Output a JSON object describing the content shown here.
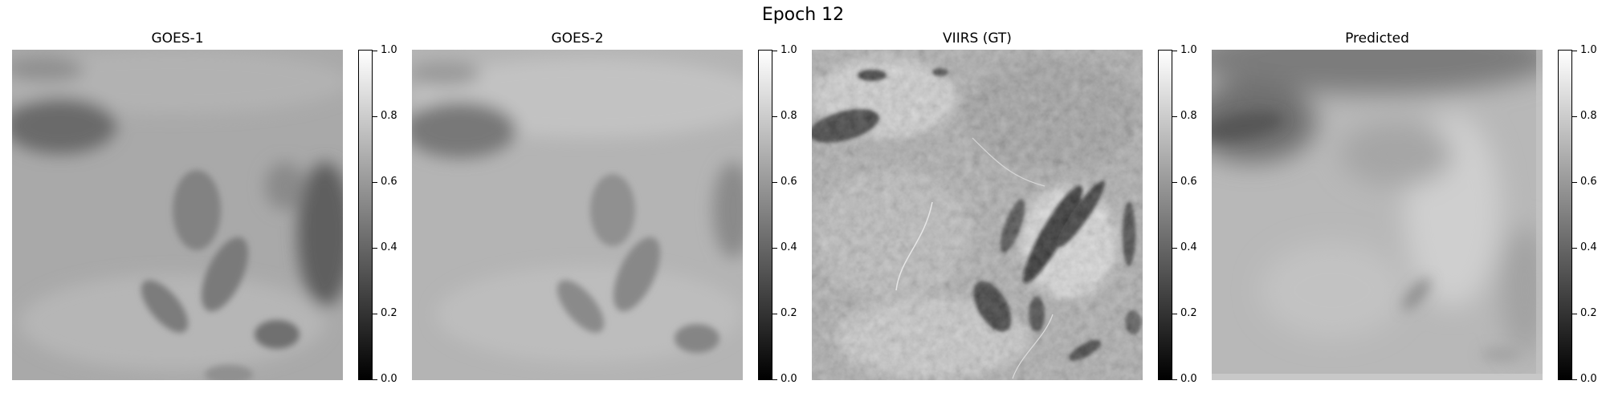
{
  "figure": {
    "title": "Epoch 12"
  },
  "panels": [
    {
      "title": "GOES-1",
      "image": "grayscale-satellite-cloud-coarse"
    },
    {
      "title": "GOES-2",
      "image": "grayscale-satellite-cloud-coarse"
    },
    {
      "title": "VIIRS (GT)",
      "image": "grayscale-satellite-cloud-high-detail"
    },
    {
      "title": "Predicted",
      "image": "grayscale-satellite-cloud-blurred"
    }
  ],
  "colorbar": {
    "colormap": "gray",
    "range": [
      0.0,
      1.0
    ],
    "ticks": [
      "0.0",
      "0.2",
      "0.4",
      "0.6",
      "0.8",
      "1.0"
    ]
  }
}
